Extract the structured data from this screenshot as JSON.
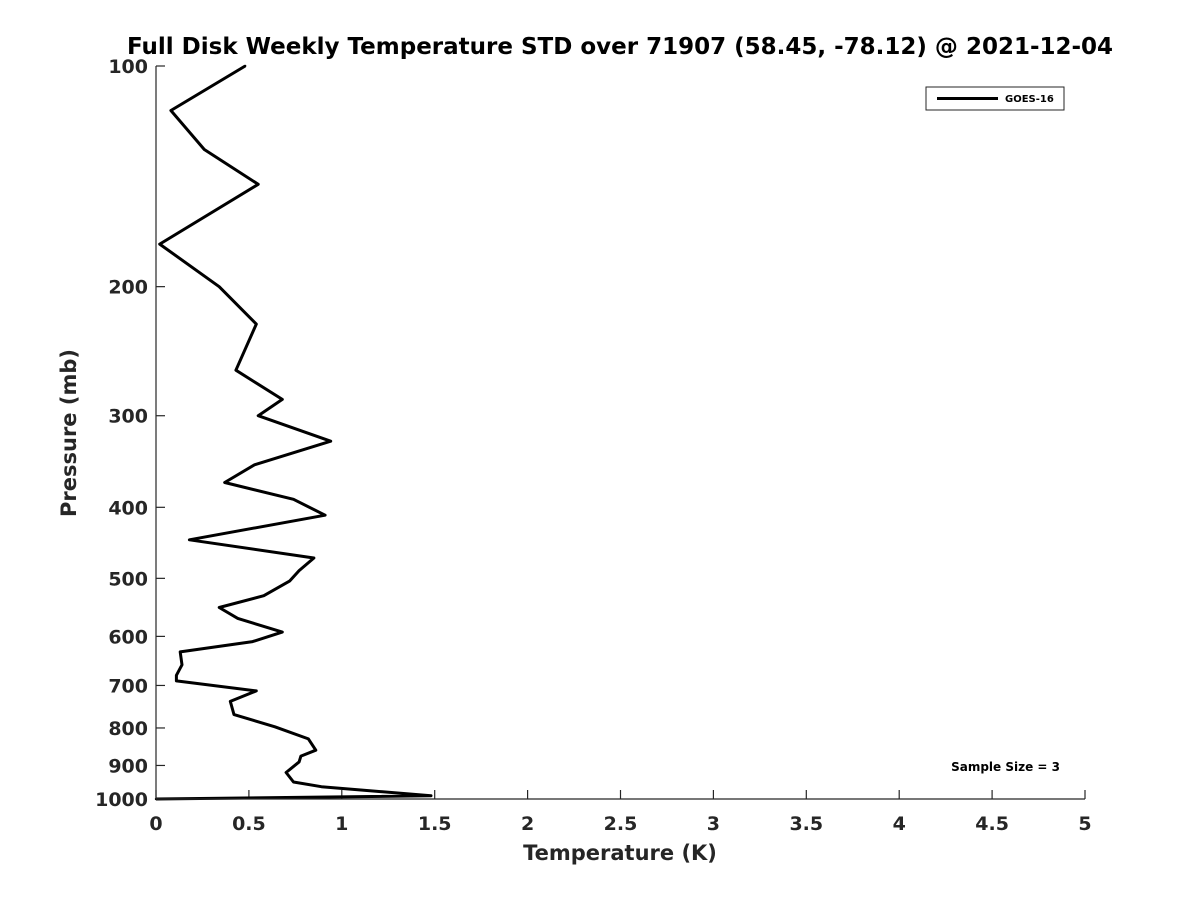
{
  "chart_data": {
    "type": "line",
    "title": "Full Disk Weekly Temperature STD over 71907 (58.45, -78.12) @ 2021-12-04",
    "xlabel": "Temperature (K)",
    "ylabel": "Pressure (mb)",
    "xlim": [
      0,
      5
    ],
    "ylim": [
      100,
      1000
    ],
    "y_scale": "log",
    "y_reversed": true,
    "x_ticks": [
      "0",
      "0.5",
      "1",
      "1.5",
      "2",
      "2.5",
      "3",
      "3.5",
      "4",
      "4.5",
      "5"
    ],
    "y_ticks": [
      "100",
      "200",
      "300",
      "400",
      "500",
      "600",
      "700",
      "800",
      "900",
      "1000"
    ],
    "legend": {
      "placement": "top-right",
      "entries": [
        "GOES-16"
      ]
    },
    "annotation": "Sample Size = 3",
    "grid": false,
    "line_color": "#000000",
    "series": [
      {
        "name": "GOES-16",
        "x": [
          0.48,
          0.08,
          0.26,
          0.55,
          0.02,
          0.34,
          0.54,
          0.43,
          0.68,
          0.55,
          0.94,
          0.53,
          0.37,
          0.74,
          0.91,
          0.18,
          0.85,
          0.77,
          0.72,
          0.58,
          0.34,
          0.44,
          0.68,
          0.52,
          0.13,
          0.14,
          0.11,
          0.11,
          0.54,
          0.4,
          0.42,
          0.64,
          0.82,
          0.86,
          0.78,
          0.77,
          0.7,
          0.74,
          0.89,
          1.48,
          0.0
        ],
        "y": [
          100,
          115,
          130,
          145,
          175,
          200,
          225,
          260,
          285,
          300,
          325,
          350,
          370,
          390,
          410,
          443,
          469,
          488,
          504,
          528,
          548,
          567,
          592,
          610,
          630,
          656,
          678,
          690,
          712,
          736,
          767,
          797,
          828,
          858,
          874,
          890,
          920,
          948,
          962,
          990,
          1000
        ]
      }
    ]
  }
}
